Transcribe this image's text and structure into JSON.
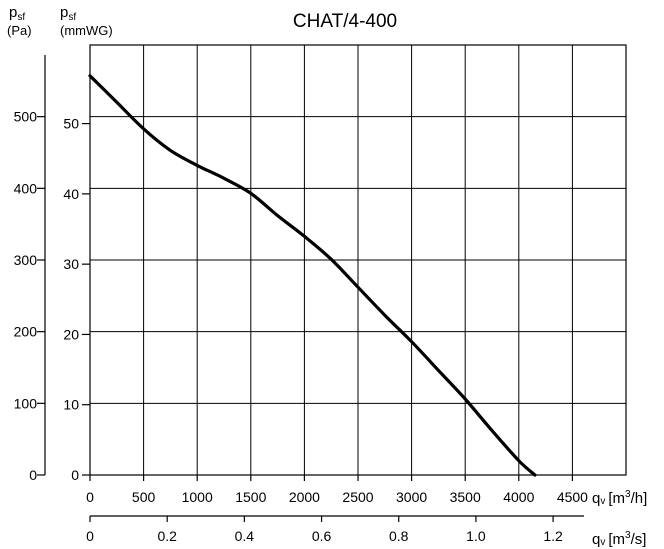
{
  "chart_data": {
    "type": "line",
    "title": "CHAT/4-400",
    "y_left": {
      "symbol": "p",
      "sub": "sf",
      "unit": "(Pa)",
      "ticks": [
        "0",
        "100",
        "200",
        "300",
        "400",
        "500"
      ],
      "tick_values": [
        0,
        100,
        200,
        300,
        400,
        500
      ]
    },
    "y_right": {
      "symbol": "p",
      "sub": "sf",
      "unit": "(mmWG)",
      "ticks": [
        "0",
        "10",
        "20",
        "30",
        "40",
        "50"
      ],
      "tick_values": [
        0,
        10,
        20,
        30,
        40,
        50
      ]
    },
    "x_top": {
      "symbol": "q",
      "sub": "v",
      "unit_pre": "[m",
      "unit_sup": "3",
      "unit_post": "/h]",
      "ticks": [
        "0",
        "500",
        "1000",
        "1500",
        "2000",
        "2500",
        "3000",
        "3500",
        "4000",
        "4500"
      ],
      "tick_values": [
        0,
        500,
        1000,
        1500,
        2000,
        2500,
        3000,
        3500,
        4000,
        4500
      ]
    },
    "x_bottom": {
      "symbol": "q",
      "sub": "v",
      "unit_pre": "[m",
      "unit_sup": "3",
      "unit_post": "/s]",
      "ticks": [
        "0",
        "0.2",
        "0.4",
        "0.6",
        "0.8",
        "1.0",
        "1.2"
      ],
      "tick_values": [
        0,
        0.2,
        0.4,
        0.6,
        0.8,
        1.0,
        1.2
      ]
    },
    "xlim": [
      0,
      5000
    ],
    "ylim": [
      0,
      600
    ],
    "grid": true,
    "series": [
      {
        "x": [
          0,
          250,
          500,
          750,
          1000,
          1250,
          1500,
          1750,
          2000,
          2250,
          2500,
          2750,
          3000,
          3250,
          3500,
          3750,
          4000,
          4150
        ],
        "y": [
          557,
          520,
          483,
          453,
          432,
          414,
          393,
          362,
          333,
          301,
          262,
          223,
          186,
          146,
          106,
          62,
          20,
          0
        ]
      }
    ]
  }
}
